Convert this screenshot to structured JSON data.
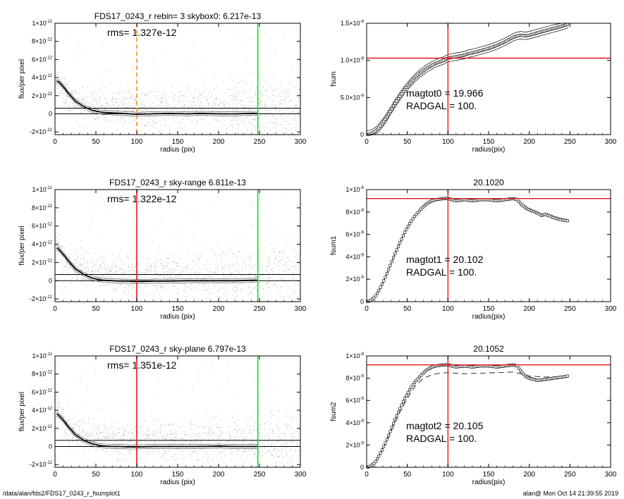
{
  "footer": {
    "path": "/data/alan/fds2/FDS17_0243_r_fsumplot1",
    "stamp": "alan@  Mon Oct 14 21:39:55 2019"
  },
  "colors": {
    "red": "#e2171f",
    "green": "#12e012",
    "orange": "#f39325",
    "points": "#a8a8a8",
    "profile": "#000000"
  },
  "chart_data": [
    {
      "type": "scatter",
      "title": "FDS17_0243_r rebin= 3    skybox0:  6.217e-13",
      "annotation": "rms= 1.327e-12",
      "xlabel": "radius (pix)",
      "ylabel": "flux/per pixel",
      "xlim": [
        0,
        300
      ],
      "ylim": [
        -2.3e-12,
        1e-11
      ],
      "xticks": [
        0,
        50,
        100,
        150,
        200,
        250,
        300
      ],
      "yticks": [
        {
          "value": 1e-11,
          "mant": "1×10",
          "exp": "-11"
        },
        {
          "value": 8e-12,
          "mant": "8×10",
          "exp": "-12"
        },
        {
          "value": 6e-12,
          "mant": "6×10",
          "exp": "-12"
        },
        {
          "value": 4e-12,
          "mant": "4×10",
          "exp": "-12"
        },
        {
          "value": 2e-12,
          "mant": "2×10",
          "exp": "-12"
        },
        {
          "value": 0,
          "mant": "0",
          "exp": ""
        },
        {
          "value": -2e-12,
          "mant": "-2×10",
          "exp": "-12"
        }
      ],
      "hlines": [
        0,
        6.217e-13
      ],
      "vlines": [
        {
          "x": 100,
          "color": "orange",
          "dashed": true
        },
        {
          "x": 248,
          "color": "green",
          "dashed": false
        }
      ],
      "profile": {
        "x": [
          2,
          5,
          8,
          12,
          16,
          20,
          25,
          30,
          35,
          40,
          45,
          50,
          55,
          60,
          70,
          80,
          90,
          100,
          120,
          140,
          160,
          180,
          200,
          220,
          240,
          248
        ],
        "y": [
          3.6e-12,
          3.5e-12,
          3.2e-12,
          2.8e-12,
          2.3e-12,
          1.9e-12,
          1.4e-12,
          1.1e-12,
          8e-13,
          6e-13,
          4e-13,
          3e-13,
          2e-13,
          1.5e-13,
          1e-13,
          5e-14,
          0,
          -5e-14,
          0,
          5e-14,
          0,
          5e-14,
          0,
          0,
          5e-14,
          5e-14
        ]
      }
    },
    {
      "type": "line",
      "title": "",
      "xlabel": "radius(pix)",
      "ylabel": "fsum",
      "xlim": [
        0,
        300
      ],
      "ylim": [
        0,
        1.5e-08
      ],
      "xticks": [
        0,
        50,
        100,
        150,
        200,
        250,
        300
      ],
      "yticks": [
        {
          "value": 1.5e-08,
          "mant": "1.5×10",
          "exp": "-8"
        },
        {
          "value": 1e-08,
          "mant": "1.0×10",
          "exp": "-8"
        },
        {
          "value": 5e-09,
          "mant": "5.0×10",
          "exp": "-9"
        },
        {
          "value": 0,
          "mant": "0",
          "exp": ""
        }
      ],
      "annotations": [
        "magtot0 =  19.966",
        "RADGAL =    100."
      ],
      "hlines": [
        {
          "y": 1.03e-08,
          "color": "red"
        }
      ],
      "vlines": [
        {
          "x": 100,
          "color": "red"
        }
      ],
      "series": {
        "x": [
          0,
          5,
          10,
          15,
          20,
          25,
          30,
          35,
          40,
          45,
          50,
          55,
          60,
          65,
          70,
          75,
          80,
          85,
          90,
          95,
          100,
          105,
          110,
          115,
          120,
          125,
          130,
          140,
          150,
          160,
          170,
          180,
          185,
          190,
          195,
          200,
          210,
          220,
          230,
          240,
          248
        ],
        "y": [
          0,
          1e-10,
          4e-10,
          9e-10,
          1.6e-09,
          2.4e-09,
          3.3e-09,
          4.2e-09,
          5e-09,
          5.8e-09,
          6.5e-09,
          7.1e-09,
          7.7e-09,
          8.2e-09,
          8.6e-09,
          9e-09,
          9.3e-09,
          9.6e-09,
          9.8e-09,
          1e-08,
          1.03e-08,
          1.04e-08,
          1.05e-08,
          1.06e-08,
          1.07e-08,
          1.09e-08,
          1.1e-08,
          1.13e-08,
          1.16e-08,
          1.2e-08,
          1.25e-08,
          1.31e-08,
          1.33e-08,
          1.34e-08,
          1.33e-08,
          1.34e-08,
          1.37e-08,
          1.4e-08,
          1.43e-08,
          1.46e-08,
          1.49e-08
        ]
      },
      "envelope": 5e-10
    },
    {
      "type": "scatter",
      "title": "FDS17_0243_r sky-range  6.811e-13",
      "annotation": "rms= 1.322e-12",
      "xlabel": "radius (pix)",
      "ylabel": "flux/per pixel",
      "xlim": [
        0,
        300
      ],
      "ylim": [
        -2.3e-12,
        1e-11
      ],
      "xticks": [
        0,
        50,
        100,
        150,
        200,
        250,
        300
      ],
      "yticks": [
        {
          "value": 1e-11,
          "mant": "1×10",
          "exp": "-11"
        },
        {
          "value": 8e-12,
          "mant": "8×10",
          "exp": "-12"
        },
        {
          "value": 6e-12,
          "mant": "6×10",
          "exp": "-12"
        },
        {
          "value": 4e-12,
          "mant": "4×10",
          "exp": "-12"
        },
        {
          "value": 2e-12,
          "mant": "2×10",
          "exp": "-12"
        },
        {
          "value": 0,
          "mant": "0",
          "exp": ""
        },
        {
          "value": -2e-12,
          "mant": "-2×10",
          "exp": "-12"
        }
      ],
      "hlines": [
        0,
        6.811e-13
      ],
      "vlines": [
        {
          "x": 100,
          "color": "red",
          "dashed": false
        },
        {
          "x": 248,
          "color": "green",
          "dashed": false
        }
      ],
      "profile": {
        "x": [
          2,
          5,
          8,
          12,
          16,
          20,
          25,
          30,
          35,
          40,
          45,
          50,
          55,
          60,
          70,
          80,
          90,
          100,
          120,
          140,
          160,
          180,
          200,
          220,
          240,
          248
        ],
        "y": [
          3.6e-12,
          3.4e-12,
          3.1e-12,
          2.7e-12,
          2.2e-12,
          1.8e-12,
          1.3e-12,
          1e-12,
          7e-13,
          5e-13,
          3e-13,
          2e-13,
          1e-13,
          5e-14,
          0,
          -5e-14,
          -5e-14,
          -1e-13,
          -5e-14,
          -5e-14,
          0,
          0,
          0,
          0,
          5e-14,
          5e-14
        ]
      }
    },
    {
      "type": "line",
      "title": "20.1020",
      "xlabel": "radius(pix)",
      "ylabel": "fsum1",
      "xlim": [
        0,
        300
      ],
      "ylim": [
        0,
        1e-08
      ],
      "xticks": [
        0,
        50,
        100,
        150,
        200,
        250,
        300
      ],
      "yticks": [
        {
          "value": 1e-08,
          "mant": "1×10",
          "exp": "-8"
        },
        {
          "value": 8e-09,
          "mant": "8×10",
          "exp": "-9"
        },
        {
          "value": 6e-09,
          "mant": "6×10",
          "exp": "-9"
        },
        {
          "value": 4e-09,
          "mant": "4×10",
          "exp": "-9"
        },
        {
          "value": 2e-09,
          "mant": "2×10",
          "exp": "-9"
        },
        {
          "value": 0,
          "mant": "0",
          "exp": ""
        }
      ],
      "annotations": [
        "magtot1 =  20.102",
        "RADGAL =    100."
      ],
      "hlines": [
        {
          "y": 9.2e-09,
          "color": "red"
        }
      ],
      "vlines": [
        {
          "x": 100,
          "color": "red"
        }
      ],
      "series": {
        "x": [
          0,
          5,
          10,
          15,
          20,
          25,
          30,
          35,
          40,
          45,
          50,
          55,
          60,
          65,
          70,
          75,
          80,
          85,
          90,
          95,
          100,
          110,
          120,
          130,
          140,
          150,
          160,
          170,
          180,
          185,
          190,
          195,
          200,
          210,
          215,
          220,
          230,
          240,
          248
        ],
        "y": [
          0,
          1e-10,
          4e-10,
          1e-09,
          1.7e-09,
          2.5e-09,
          3.4e-09,
          4.3e-09,
          5.1e-09,
          5.9e-09,
          6.6e-09,
          7.2e-09,
          7.7e-09,
          8.1e-09,
          8.5e-09,
          8.8e-09,
          9e-09,
          9.1e-09,
          9.15e-09,
          9.2e-09,
          9.2e-09,
          9e-09,
          9.1e-09,
          9e-09,
          9.1e-09,
          9.1e-09,
          9e-09,
          9.1e-09,
          9.2e-09,
          9.1e-09,
          8.7e-09,
          8.4e-09,
          8.2e-09,
          7.9e-09,
          7.7e-09,
          7.8e-09,
          7.5e-09,
          7.3e-09,
          7.2e-09
        ]
      }
    },
    {
      "type": "scatter",
      "title": "FDS17_0243_r sky-plane  6.797e-13",
      "annotation": "rms= 1.351e-12",
      "xlabel": "radius (pix)",
      "ylabel": "flux/per pixel",
      "xlim": [
        0,
        300
      ],
      "ylim": [
        -2.3e-12,
        1e-11
      ],
      "xticks": [
        0,
        50,
        100,
        150,
        200,
        250,
        300
      ],
      "yticks": [
        {
          "value": 1e-11,
          "mant": "1×10",
          "exp": "-11"
        },
        {
          "value": 8e-12,
          "mant": "8×10",
          "exp": "-12"
        },
        {
          "value": 6e-12,
          "mant": "6×10",
          "exp": "-12"
        },
        {
          "value": 4e-12,
          "mant": "4×10",
          "exp": "-12"
        },
        {
          "value": 2e-12,
          "mant": "2×10",
          "exp": "-12"
        },
        {
          "value": 0,
          "mant": "0",
          "exp": ""
        },
        {
          "value": -2e-12,
          "mant": "-2×10",
          "exp": "-12"
        }
      ],
      "hlines": [
        0,
        6.797e-13
      ],
      "vlines": [
        {
          "x": 100,
          "color": "red",
          "dashed": false
        },
        {
          "x": 248,
          "color": "green",
          "dashed": false
        }
      ],
      "profile": {
        "x": [
          2,
          5,
          8,
          12,
          16,
          20,
          25,
          30,
          35,
          40,
          45,
          50,
          55,
          60,
          70,
          80,
          90,
          100,
          120,
          140,
          160,
          180,
          200,
          220,
          240,
          248
        ],
        "y": [
          3.6e-12,
          3.4e-12,
          3.1e-12,
          2.7e-12,
          2.2e-12,
          1.8e-12,
          1.3e-12,
          1e-12,
          7e-13,
          5e-13,
          3e-13,
          2e-13,
          1e-13,
          5e-14,
          0,
          0,
          -5e-14,
          -5e-14,
          0,
          0,
          0,
          0,
          5e-14,
          0,
          0,
          0
        ]
      }
    },
    {
      "type": "line",
      "title": "20.1052",
      "xlabel": "radius(pix)",
      "ylabel": "fsum2",
      "xlim": [
        0,
        300
      ],
      "ylim": [
        0,
        1e-08
      ],
      "xticks": [
        0,
        50,
        100,
        150,
        200,
        250,
        300
      ],
      "yticks": [
        {
          "value": 1e-08,
          "mant": "1×10",
          "exp": "-8"
        },
        {
          "value": 8e-09,
          "mant": "8×10",
          "exp": "-9"
        },
        {
          "value": 6e-09,
          "mant": "6×10",
          "exp": "-9"
        },
        {
          "value": 4e-09,
          "mant": "4×10",
          "exp": "-9"
        },
        {
          "value": 2e-09,
          "mant": "2×10",
          "exp": "-9"
        },
        {
          "value": 0,
          "mant": "0",
          "exp": ""
        }
      ],
      "annotations": [
        "magtot2 =  20.105",
        "RADGAL =    100."
      ],
      "hlines": [
        {
          "y": 9.2e-09,
          "color": "red"
        }
      ],
      "vlines": [
        {
          "x": 100,
          "color": "red"
        }
      ],
      "series": {
        "x": [
          0,
          5,
          10,
          15,
          20,
          25,
          30,
          35,
          40,
          45,
          50,
          55,
          60,
          65,
          70,
          75,
          80,
          85,
          90,
          95,
          100,
          110,
          120,
          130,
          140,
          150,
          160,
          170,
          180,
          185,
          190,
          195,
          200,
          210,
          220,
          230,
          240,
          248
        ],
        "y": [
          0,
          1e-10,
          4e-10,
          1e-09,
          1.7e-09,
          2.5e-09,
          3.4e-09,
          4.3e-09,
          5.1e-09,
          5.9e-09,
          6.6e-09,
          7.2e-09,
          7.7e-09,
          8.1e-09,
          8.5e-09,
          8.8e-09,
          9e-09,
          9.1e-09,
          9.15e-09,
          9.2e-09,
          9.2e-09,
          9e-09,
          9.1e-09,
          9e-09,
          9.1e-09,
          9.1e-09,
          9e-09,
          9.1e-09,
          9.2e-09,
          9.1e-09,
          8.6e-09,
          8.2e-09,
          8e-09,
          7.8e-09,
          7.9e-09,
          8e-09,
          8.1e-09,
          8.2e-09
        ]
      },
      "dashed_series": {
        "x": [
          0,
          10,
          20,
          30,
          40,
          50,
          60,
          70,
          80,
          90,
          100,
          120,
          140,
          160,
          180,
          190,
          200,
          220,
          240,
          248
        ],
        "y": [
          0,
          4e-10,
          1.6e-09,
          3.2e-09,
          4.8e-09,
          6.2e-09,
          7.3e-09,
          8e-09,
          8.3e-09,
          8.45e-09,
          8.5e-09,
          8.4e-09,
          8.45e-09,
          8.5e-09,
          8.55e-09,
          8.4e-09,
          8.2e-09,
          8.1e-09,
          8.15e-09,
          8.2e-09
        ]
      }
    }
  ]
}
